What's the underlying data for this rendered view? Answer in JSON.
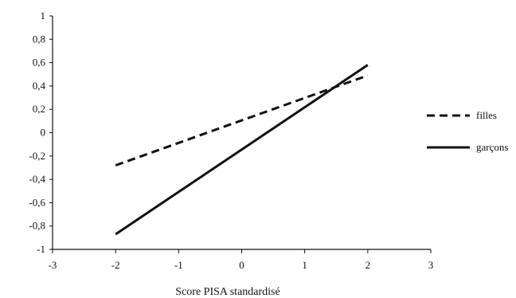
{
  "chart_data": {
    "type": "line",
    "title": "",
    "xlabel": "Score PISA standardisé",
    "ylabel": "",
    "xlim": [
      -3,
      3
    ],
    "ylim": [
      -1,
      1
    ],
    "x_ticks": [
      -3,
      -2,
      -1,
      0,
      1,
      2,
      3
    ],
    "x_tick_labels": [
      "-3",
      "-2",
      "-1",
      "0",
      "1",
      "2",
      "3"
    ],
    "y_ticks": [
      -1,
      -0.8,
      -0.6,
      -0.4,
      -0.2,
      0,
      0.2,
      0.4,
      0.6,
      0.8,
      1
    ],
    "y_tick_labels": [
      "-1",
      "-0,8",
      "-0,6",
      "-0,4",
      "-0,2",
      "0",
      "0,2",
      "0,4",
      "0,6",
      "0,8",
      "1"
    ],
    "grid": false,
    "legend_position": "right",
    "series": [
      {
        "name": "filles",
        "style": "dashed",
        "color": "#111111",
        "points": [
          {
            "x": -2,
            "y": -0.28
          },
          {
            "x": 2,
            "y": 0.49
          }
        ]
      },
      {
        "name": "garçons",
        "style": "solid",
        "color": "#111111",
        "points": [
          {
            "x": -2,
            "y": -0.87
          },
          {
            "x": 2,
            "y": 0.58
          }
        ]
      }
    ]
  }
}
